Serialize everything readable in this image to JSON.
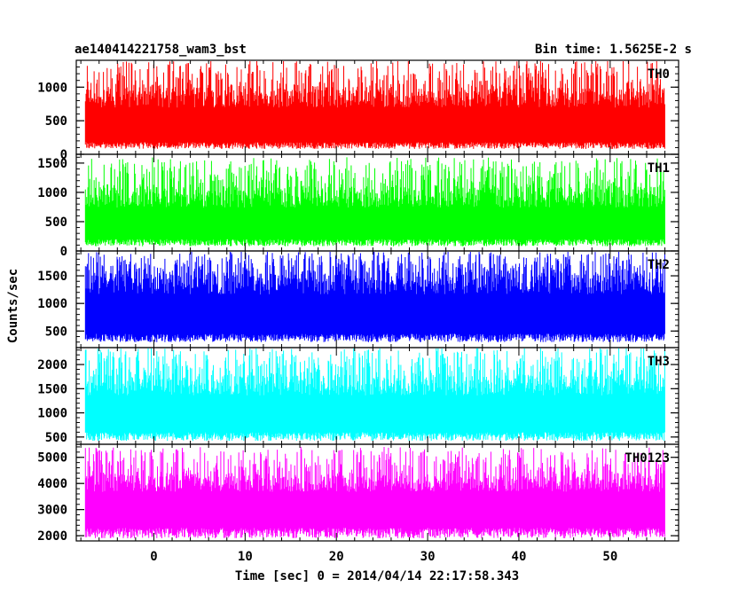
{
  "chart_data": {
    "type": "line",
    "title": "ae140414221758_wam3_bst",
    "bin_time_label": "Bin time: 1.5625E-2 s",
    "xlabel": "Time [sec] 0 = 2014/04/14 22:17:58.343",
    "ylabel": "Counts/sec",
    "xlim": [
      -8.5,
      57.5
    ],
    "x_ticks": [
      0,
      10,
      20,
      30,
      40,
      50
    ],
    "x_range_data": [
      -7.5,
      56.0
    ],
    "grid": false,
    "legend": "none",
    "panels": [
      {
        "name": "TH0",
        "color": "#ff0000",
        "ylim": [
          0,
          1400
        ],
        "y_ticks": [
          0,
          500,
          1000
        ],
        "baseline": 620,
        "low_range": [
          80,
          180
        ],
        "high_range": [
          1000,
          1400
        ]
      },
      {
        "name": "TH1",
        "color": "#00ff00",
        "ylim": [
          0,
          1650
        ],
        "y_ticks": [
          0,
          500,
          1000,
          1500
        ],
        "baseline": 650,
        "low_range": [
          80,
          200
        ],
        "high_range": [
          1100,
          1600
        ]
      },
      {
        "name": "TH2",
        "color": "#0000ff",
        "ylim": [
          200,
          1950
        ],
        "y_ticks": [
          500,
          1000,
          1500
        ],
        "baseline": 1050,
        "low_range": [
          300,
          450
        ],
        "high_range": [
          1600,
          1950
        ]
      },
      {
        "name": "TH3",
        "color": "#00ffff",
        "ylim": [
          350,
          2350
        ],
        "y_ticks": [
          500,
          1000,
          1500,
          2000
        ],
        "baseline": 1250,
        "low_range": [
          420,
          600
        ],
        "high_range": [
          1800,
          2350
        ]
      },
      {
        "name": "TH0123",
        "color": "#ff00ff",
        "ylim": [
          1800,
          5500
        ],
        "y_ticks": [
          2000,
          3000,
          4000,
          5000
        ],
        "baseline": 3500,
        "low_range": [
          1900,
          2300
        ],
        "high_range": [
          4400,
          5400
        ]
      }
    ]
  }
}
